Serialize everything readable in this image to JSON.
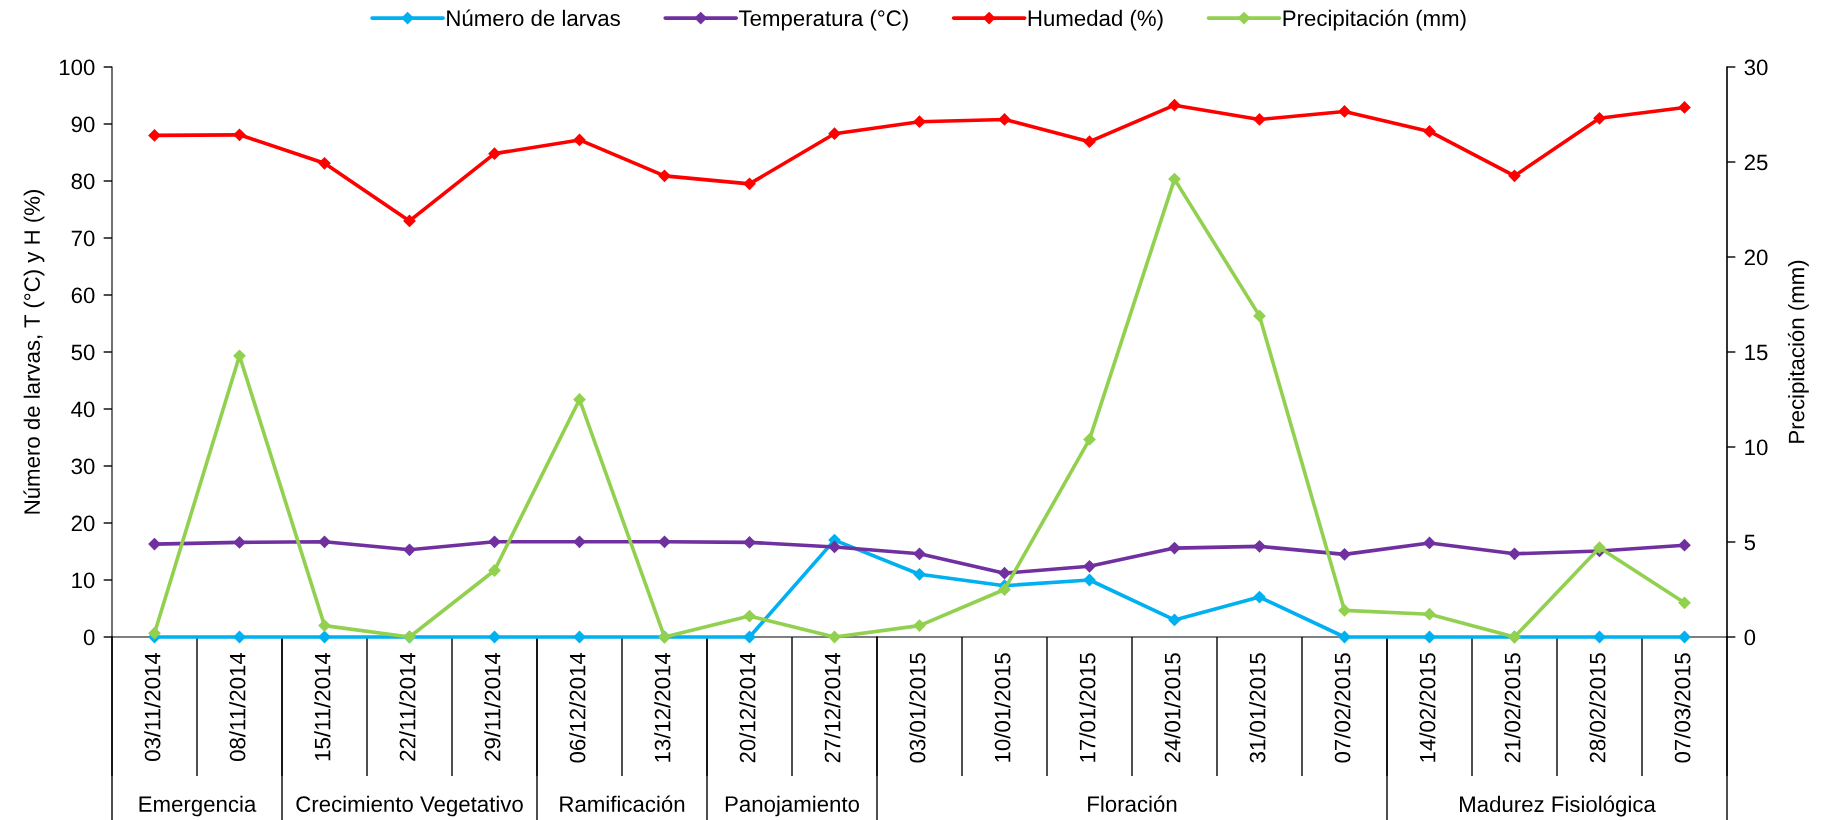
{
  "chart_data": {
    "type": "line",
    "categories": [
      "03/11/2014",
      "08/11/2014",
      "15/11/2014",
      "22/11/2014",
      "29/11/2014",
      "06/12/2014",
      "13/12/2014",
      "20/12/2014",
      "27/12/2014",
      "03/01/2015",
      "10/01/2015",
      "17/01/2015",
      "24/01/2015",
      "31/01/2015",
      "07/02/2015",
      "14/02/2015",
      "21/02/2015",
      "28/02/2015",
      "07/03/2015"
    ],
    "ylabel": "Número de larvas, T (°C) y H (%)",
    "y2label": "Precipitación (mm)",
    "ylim": [
      0,
      100
    ],
    "yticks": [
      0,
      10,
      20,
      30,
      40,
      50,
      60,
      70,
      80,
      90,
      100
    ],
    "y2lim": [
      0,
      30
    ],
    "y2ticks": [
      0,
      5,
      10,
      15,
      20,
      25,
      30
    ],
    "legend": "top",
    "marker": "diamond",
    "line_style": "solid",
    "annotations": [
      "Emergencia",
      "Crecimiento Vegetativo",
      "Ramificación",
      "Panojamiento",
      "Floración",
      "Madurez Fisiológica"
    ],
    "series": [
      {
        "name": "Número de larvas",
        "color": "#00b0f0",
        "values": [
          0,
          0,
          0,
          0,
          0,
          0,
          0,
          0,
          17,
          11,
          9,
          10,
          3,
          7,
          0,
          0,
          0,
          0,
          0
        ]
      },
      {
        "name": "Temperatura (°C)",
        "color": "#7030a0",
        "values": [
          16.3,
          16.6,
          16.7,
          15.3,
          16.7,
          16.7,
          16.7,
          16.6,
          15.8,
          14.6,
          11.2,
          12.4,
          15.6,
          15.9,
          14.5,
          16.5,
          14.6,
          15.1,
          16.1
        ]
      },
      {
        "name": "Humedad (%)",
        "color": "#ff0000",
        "values": [
          88.0,
          88.1,
          83.1,
          73.0,
          84.8,
          87.2,
          80.9,
          79.5,
          88.3,
          90.4,
          90.8,
          86.9,
          93.3,
          90.8,
          92.2,
          88.7,
          80.9,
          91.0,
          92.9
        ]
      },
      {
        "name": "Precipitación (mm)",
        "color": "#92d050",
        "axis": "y2",
        "values": [
          0.2,
          14.8,
          0.6,
          0,
          3.5,
          12.5,
          0,
          1.1,
          0,
          0.6,
          2.5,
          10.4,
          24.1,
          16.9,
          1.4,
          1.2,
          0,
          4.7,
          1.8
        ]
      }
    ]
  }
}
